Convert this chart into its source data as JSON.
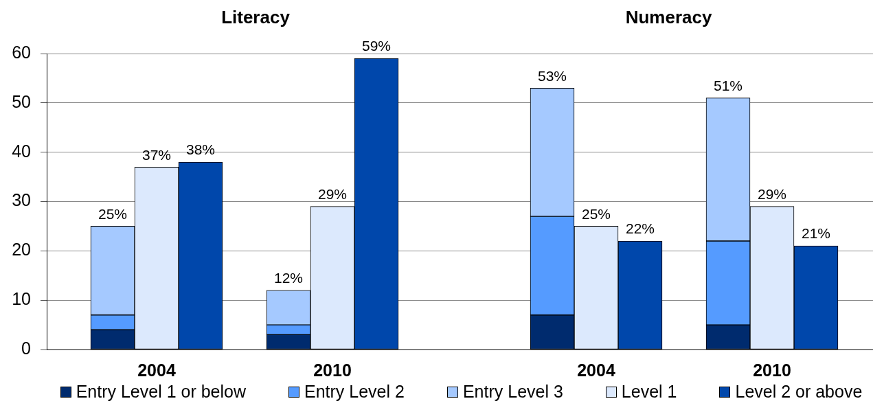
{
  "chart_data": [
    {
      "type": "bar",
      "title": "Literacy",
      "categories": [
        null,
        "2004",
        null,
        null,
        null,
        "2010",
        null
      ],
      "series": [
        {
          "name": "Entry Level 1 or below",
          "color": "#002b6e",
          "values": [
            4,
            null,
            null,
            null,
            3,
            null,
            null
          ]
        },
        {
          "name": "Entry Level 2",
          "color": "#559bff",
          "values": [
            3,
            null,
            null,
            null,
            2,
            null,
            null
          ]
        },
        {
          "name": "Entry Level 3",
          "color": "#a5c9ff",
          "values": [
            18,
            null,
            null,
            null,
            7,
            null,
            null
          ]
        },
        {
          "name": "Level 1",
          "color": "#dce9fd",
          "values": [
            null,
            37,
            null,
            null,
            null,
            29,
            null
          ]
        },
        {
          "name": "Level 2 or above",
          "color": "#0047ab",
          "values": [
            null,
            null,
            38,
            null,
            null,
            null,
            59
          ]
        }
      ],
      "stacked": true,
      "ylim": [
        0,
        60
      ],
      "yticks": [
        0,
        10,
        20,
        30,
        40,
        50,
        60
      ],
      "grid": "y",
      "legend": "bottom",
      "totals": [
        "25%",
        "37%",
        "38%",
        null,
        "12%",
        "29%",
        "59%"
      ]
    },
    {
      "type": "bar",
      "title": "Numeracy",
      "categories": [
        null,
        "2004",
        null,
        null,
        null,
        "2010",
        null
      ],
      "series": [
        {
          "name": "Entry Level 1 or below",
          "color": "#002b6e",
          "values": [
            7,
            null,
            null,
            null,
            5,
            null,
            null
          ]
        },
        {
          "name": "Entry Level 2",
          "color": "#559bff",
          "values": [
            20,
            null,
            null,
            null,
            17,
            null,
            null
          ]
        },
        {
          "name": "Entry Level 3",
          "color": "#a5c9ff",
          "values": [
            26,
            null,
            null,
            null,
            29,
            null,
            null
          ]
        },
        {
          "name": "Level 1",
          "color": "#dce9fd",
          "values": [
            null,
            25,
            null,
            null,
            null,
            29,
            null
          ]
        },
        {
          "name": "Level 2 or above",
          "color": "#0047ab",
          "values": [
            null,
            null,
            22,
            null,
            null,
            null,
            21
          ]
        }
      ],
      "stacked": true,
      "ylim": [
        0,
        60
      ],
      "yticks": [
        0,
        10,
        20,
        30,
        40,
        50,
        60
      ],
      "grid": "y",
      "tick_labels": "x",
      "legend": "bottom",
      "totals": [
        "53%",
        "25%",
        "22%",
        null,
        "51%",
        "29%",
        "21%"
      ]
    }
  ]
}
